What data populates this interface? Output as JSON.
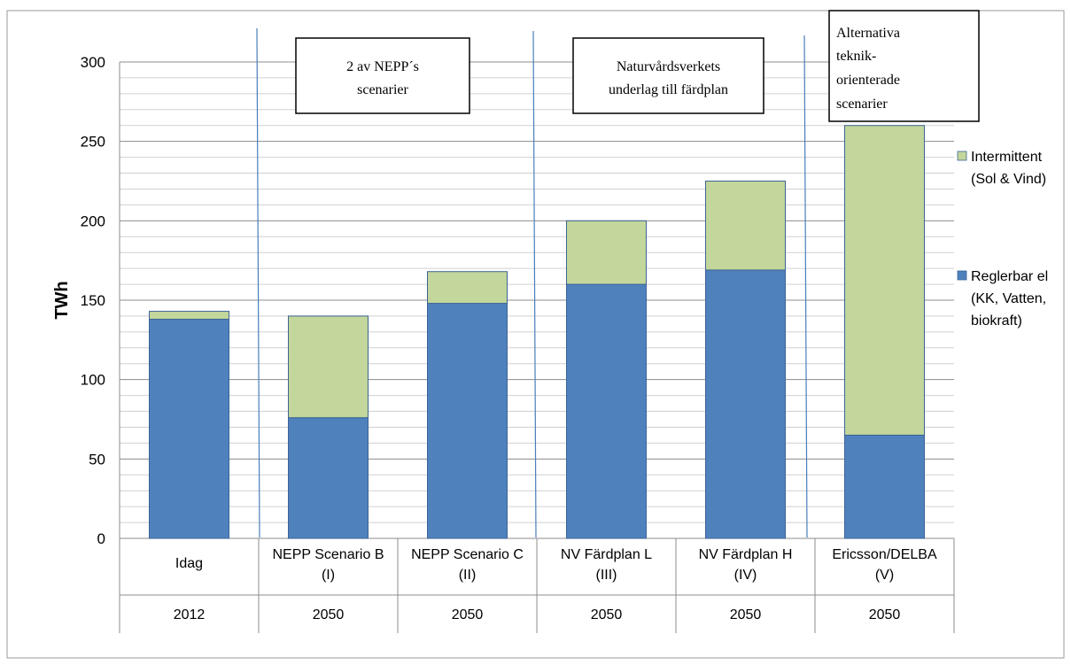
{
  "chart_data": {
    "type": "bar",
    "stacked": true,
    "ylabel": "TWh",
    "ylim": [
      0,
      300
    ],
    "yticks": [
      0,
      50,
      100,
      150,
      200,
      250,
      300
    ],
    "grid": true,
    "legend_position": "right",
    "categories": [
      {
        "label_lines": [
          "Idag"
        ],
        "year": "2012"
      },
      {
        "label_lines": [
          "NEPP  Scenario B",
          "(I)"
        ],
        "year": "2050"
      },
      {
        "label_lines": [
          "NEPP  Scenario C",
          "(II)"
        ],
        "year": "2050"
      },
      {
        "label_lines": [
          "NV  Färdplan L",
          "(III)"
        ],
        "year": "2050"
      },
      {
        "label_lines": [
          "NV  Färdplan H",
          "(IV)"
        ],
        "year": "2050"
      },
      {
        "label_lines": [
          "Ericsson/DELBA",
          "(V)"
        ],
        "year": "2050"
      }
    ],
    "series": [
      {
        "name_lines": [
          "Reglerbar el",
          "(KK, Vatten,",
          "biokraft)"
        ],
        "color": "#4f81bd",
        "values": [
          138,
          76,
          148,
          160,
          169,
          65
        ]
      },
      {
        "name_lines": [
          "Intermittent",
          "(Sol & Vind)"
        ],
        "color": "#c3d69b",
        "values": [
          5,
          64,
          20,
          40,
          56,
          195
        ]
      }
    ],
    "annotations": [
      {
        "lines": [
          "2 av NEPP´s",
          "scenarier"
        ]
      },
      {
        "lines": [
          "Naturvårdsverkets",
          "underlag till färdplan"
        ]
      },
      {
        "lines": [
          "Alternativa",
          "teknik-",
          "orienterade",
          "scenarier"
        ]
      }
    ]
  }
}
